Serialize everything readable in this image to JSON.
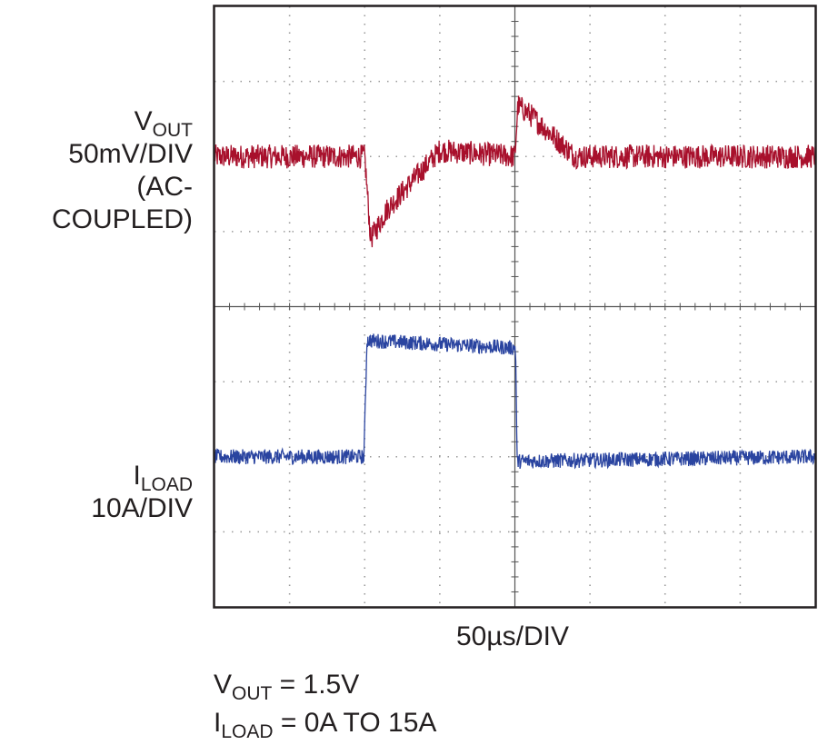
{
  "chart_data": {
    "type": "line",
    "channels": [
      {
        "name_main": "V",
        "name_sub": "OUT",
        "scale": "50mV/DIV",
        "note": "(AC-COUPLED)",
        "color": "#a8102c",
        "unit_per_div": 50,
        "unit": "mV",
        "baseline_div": 2,
        "points_us": [
          0,
          100,
          104,
          115,
          150,
          200,
          202,
          210,
          240,
          400
        ],
        "points_mv": [
          0,
          0,
          -55,
          -35,
          4,
          0,
          34,
          28,
          0,
          0
        ],
        "noise_mv": 8
      },
      {
        "name_main": "I",
        "name_sub": "LOAD",
        "scale": "10A/DIV",
        "color": "#2a44a0",
        "unit_per_div": 10,
        "unit": "A",
        "baseline_div": 6,
        "points_us": [
          0,
          99.5,
          101.5,
          200,
          200.5,
          201.5,
          400
        ],
        "points_a": [
          0,
          0,
          15.5,
          14.5,
          14.5,
          -0.6,
          0
        ],
        "noise_a": 1
      }
    ],
    "x_scale": "50µs/DIV",
    "x_per_div_us": 50,
    "divisions": {
      "x": 8,
      "y": 8
    },
    "conditions": {
      "line1_main": "V",
      "line1_sub": "OUT",
      "line1_rest": " = 1.5V",
      "line2_main": "I",
      "line2_sub": "LOAD",
      "line2_rest": " = 0A TO 15A"
    },
    "grid": true
  }
}
